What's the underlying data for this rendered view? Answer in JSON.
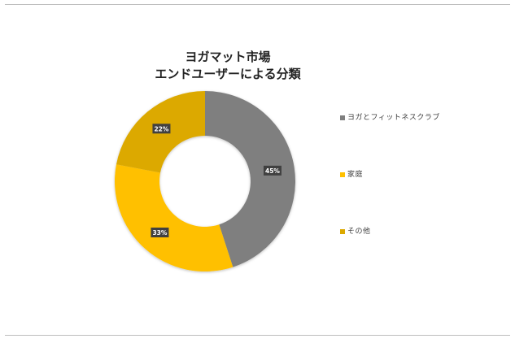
{
  "chart_data": {
    "type": "pie",
    "title_lines": [
      "ヨガマット市場",
      "エンドユーザーによる分類"
    ],
    "donut": true,
    "categories": [
      "ヨガとフィットネスクラブ",
      "家庭",
      "その他"
    ],
    "values": [
      45,
      33,
      22
    ],
    "data_labels": [
      "45%",
      "33%",
      "22%"
    ],
    "colors": [
      "#7f7f7f",
      "#ffc000",
      "#dca900"
    ],
    "legend_position": "right"
  }
}
